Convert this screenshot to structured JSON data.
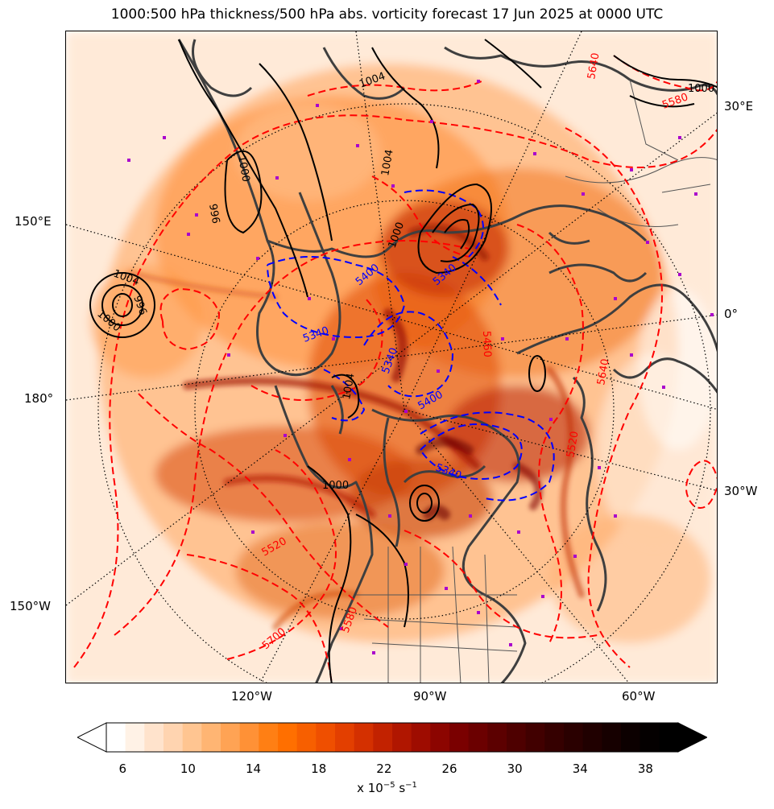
{
  "title": "1000:500 hPa thickness/500 hPa abs. vorticity forecast 17 Jun 2025 at 0000 UTC",
  "map": {
    "graticule_labels_left": [
      "150°E",
      "180°",
      "150°W"
    ],
    "graticule_labels_right": [
      "30°E",
      "0°",
      "30°W"
    ],
    "graticule_labels_bottom": [
      "120°W",
      "90°W",
      "60°W"
    ],
    "pressure_contour_labels": [
      "1004",
      "1000",
      "996",
      "1004",
      "1000",
      "1004",
      "1000",
      "996",
      "1004",
      "1000",
      "1000"
    ],
    "thickness_contour_labels_red": [
      "5640",
      "5580",
      "5460",
      "5640",
      "5520",
      "5520",
      "5580",
      "5700"
    ],
    "thickness_contour_labels_blue": [
      "5340",
      "5400",
      "5340",
      "5340",
      "5400",
      "5340"
    ],
    "colors": {
      "pressure_contour": "#000000",
      "thickness_warm": "#ff0000",
      "thickness_cold": "#0000ff",
      "coastline": "#3f3f3f",
      "marker": "#aa00cc"
    }
  },
  "colorbar": {
    "ticks": [
      "6",
      "10",
      "14",
      "18",
      "22",
      "26",
      "30",
      "34",
      "38"
    ],
    "label_prefix": "x 10",
    "label_exp": "−5",
    "label_unit": " s",
    "label_unit_exp": "−1",
    "extend": "both",
    "colors": [
      "#ffffff",
      "#fff2e6",
      "#ffe3cc",
      "#ffd4b0",
      "#ffc591",
      "#ffb573",
      "#ffa354",
      "#ff9136",
      "#ff7f14",
      "#ff6f00",
      "#f75f00",
      "#ef4f00",
      "#e33f00",
      "#d43000",
      "#c22200",
      "#b01600",
      "#9e0c00",
      "#8c0500",
      "#7a0000",
      "#6b0000",
      "#5c0000",
      "#4e0000",
      "#410000",
      "#350000",
      "#2a0000",
      "#200000",
      "#160000",
      "#0c0000",
      "#040000",
      "#000000"
    ]
  }
}
